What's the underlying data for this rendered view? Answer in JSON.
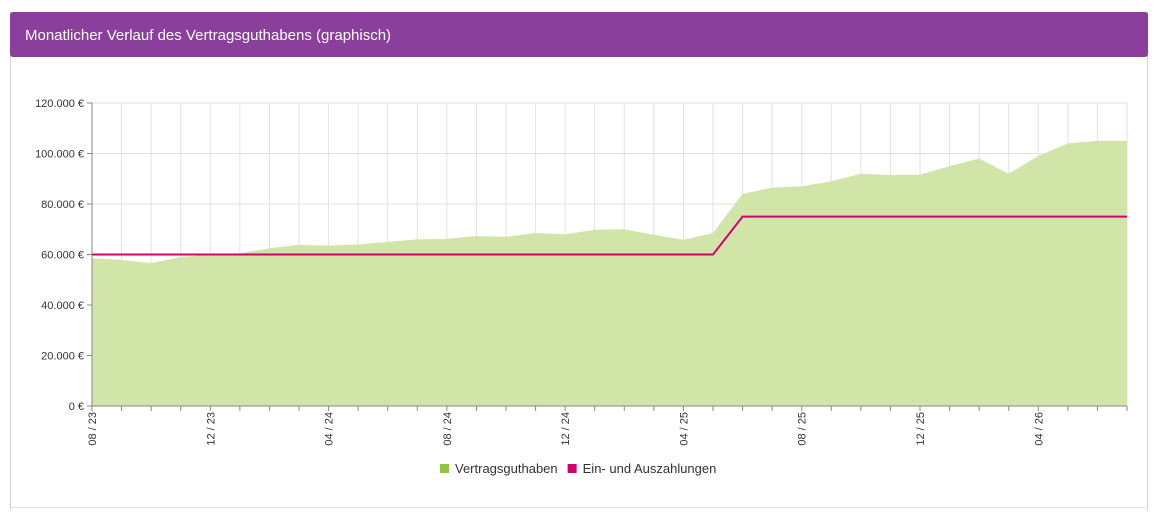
{
  "chart_data": {
    "type": "area",
    "title": "Monatlicher Verlauf des Vertragsguthabens (graphisch)",
    "categories": [
      "08 / 23",
      null,
      null,
      null,
      "12 / 23",
      null,
      null,
      null,
      "04 / 24",
      null,
      null,
      null,
      "08 / 24",
      null,
      null,
      null,
      "12 / 24",
      null,
      null,
      null,
      "04 / 25",
      null,
      null,
      null,
      "08 / 25",
      null,
      null,
      null,
      "12 / 25",
      null,
      null,
      null,
      "04 / 26",
      null,
      null,
      null
    ],
    "series": [
      {
        "name": "Vertragsguthaben",
        "type": "area",
        "color": "#8cc63f",
        "fill": "#d1e5a9",
        "values": [
          58500,
          57800,
          56600,
          59000,
          60000,
          60500,
          62500,
          63800,
          63500,
          64000,
          65000,
          66000,
          66200,
          67300,
          67000,
          68500,
          68000,
          69800,
          70000,
          67800,
          65800,
          68500,
          84000,
          86500,
          87000,
          89000,
          92000,
          91500,
          91600,
          95000,
          98000,
          92000,
          99000,
          104000,
          105000,
          105000
        ]
      },
      {
        "name": "Ein- und Auszahlungen",
        "type": "line",
        "color": "#d4006f",
        "values": [
          60000,
          60000,
          60000,
          60000,
          60000,
          60000,
          60000,
          60000,
          60000,
          60000,
          60000,
          60000,
          60000,
          60000,
          60000,
          60000,
          60000,
          60000,
          60000,
          60000,
          60000,
          60000,
          75000,
          75000,
          75000,
          75000,
          75000,
          75000,
          75000,
          75000,
          75000,
          75000,
          75000,
          75000,
          75000,
          75000
        ]
      }
    ],
    "ylim": [
      0,
      120000
    ],
    "yticks": [
      {
        "value": 0,
        "label": "0 €"
      },
      {
        "value": 20000,
        "label": "20.000 €"
      },
      {
        "value": 40000,
        "label": "40.000 €"
      },
      {
        "value": 60000,
        "label": "60.000 €"
      },
      {
        "value": 80000,
        "label": "80.000 €"
      },
      {
        "value": 100000,
        "label": "100.000 €"
      },
      {
        "value": 120000,
        "label": "120.000 €"
      }
    ],
    "grid": true,
    "legend": "bottom"
  }
}
